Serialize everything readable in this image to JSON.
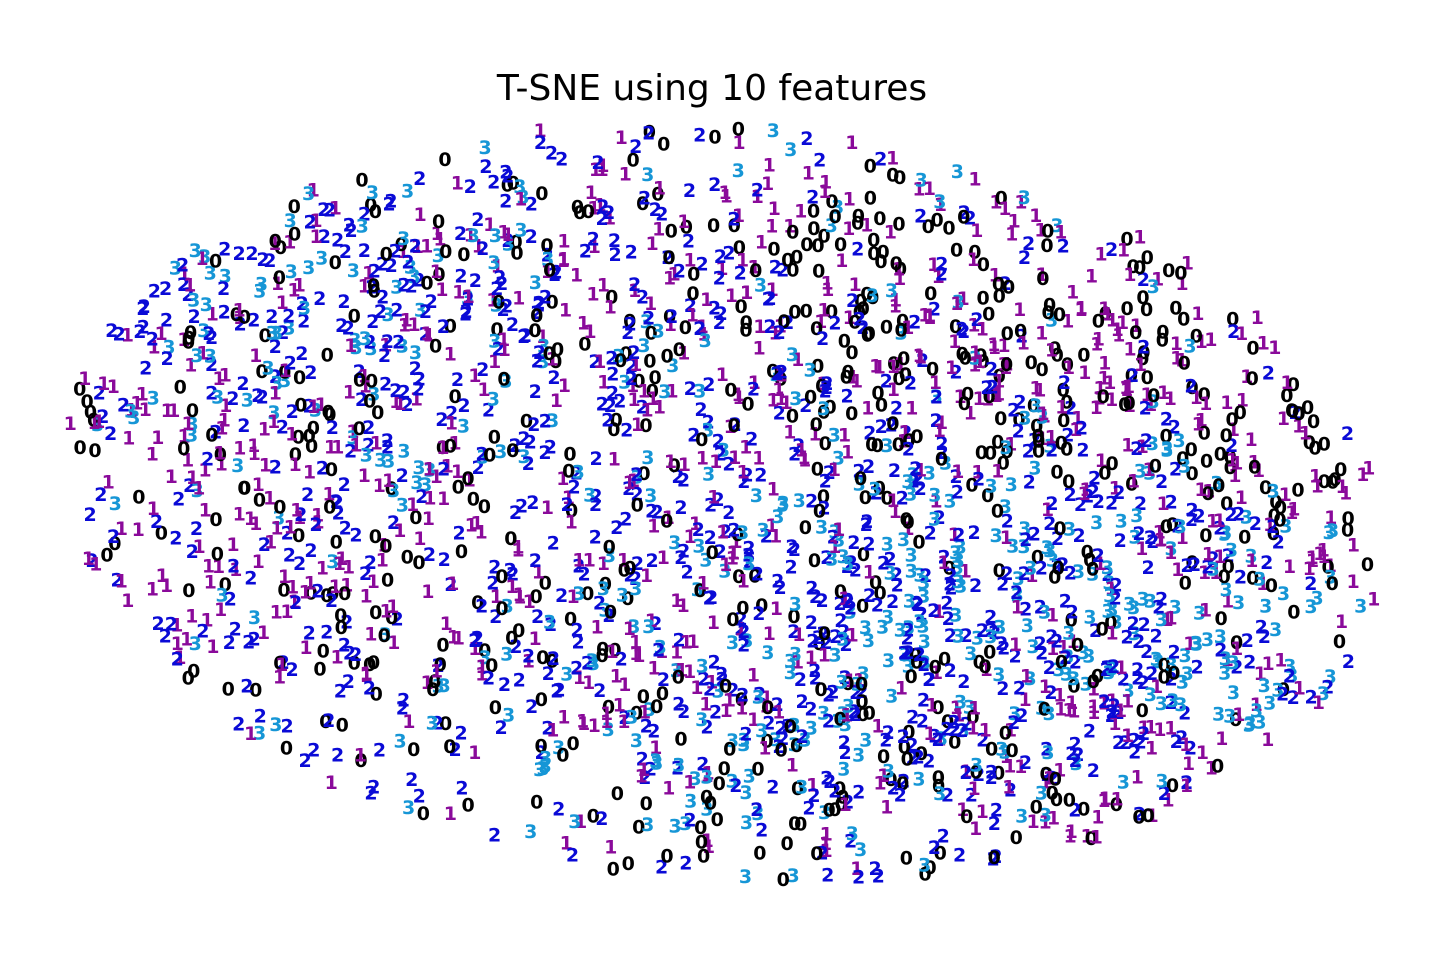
{
  "chart_data": {
    "type": "scatter",
    "title": "T-SNE using 10 features",
    "xlabel": "",
    "ylabel": "",
    "axes_visible": false,
    "grid": false,
    "legend": "none",
    "marker": "digit-labels",
    "xlim": [
      -60,
      60
    ],
    "ylim": [
      -42,
      42
    ],
    "class_labels": [
      "0",
      "1",
      "2",
      "3"
    ],
    "colors": {
      "0": "#000000",
      "1": "#8a0a9a",
      "2": "#0a0ad6",
      "3": "#1696d6"
    },
    "seed": 20240611,
    "n_points": 2600,
    "class_density_profiles": {
      "0": [
        [
          -20,
          28,
          3
        ],
        [
          10,
          24,
          6
        ],
        [
          30,
          16,
          9
        ],
        [
          44,
          4,
          8
        ],
        [
          -40,
          6,
          3
        ],
        [
          -30,
          -10,
          3
        ],
        [
          -10,
          -14,
          2
        ],
        [
          0,
          -28,
          3
        ],
        [
          28,
          -26,
          6
        ],
        [
          15,
          5,
          2
        ],
        [
          -5,
          12,
          2
        ]
      ],
      "1": [
        [
          30,
          18,
          9
        ],
        [
          48,
          2,
          9
        ],
        [
          -50,
          2,
          6
        ],
        [
          -40,
          12,
          5
        ],
        [
          -20,
          24,
          5
        ],
        [
          10,
          12,
          4
        ],
        [
          -10,
          -2,
          4
        ],
        [
          -30,
          -12,
          4
        ],
        [
          -5,
          -16,
          4
        ],
        [
          18,
          -22,
          5
        ],
        [
          35,
          -26,
          4
        ],
        [
          8,
          24,
          4
        ]
      ],
      "2": [
        [
          -40,
          20,
          9
        ],
        [
          -20,
          26,
          5
        ],
        [
          -45,
          -8,
          4
        ],
        [
          -30,
          -14,
          4
        ],
        [
          10,
          8,
          6
        ],
        [
          25,
          -8,
          8
        ],
        [
          40,
          -12,
          6
        ],
        [
          10,
          -24,
          7
        ],
        [
          -10,
          12,
          4
        ],
        [
          0,
          -10,
          5
        ],
        [
          25,
          -28,
          4
        ],
        [
          -15,
          0,
          4
        ]
      ],
      "3": [
        [
          -30,
          28,
          4
        ],
        [
          -40,
          12,
          3
        ],
        [
          -15,
          12,
          3
        ],
        [
          25,
          -5,
          8
        ],
        [
          42,
          -12,
          6
        ],
        [
          10,
          -20,
          5
        ],
        [
          -5,
          -25,
          4
        ],
        [
          45,
          -18,
          3
        ],
        [
          5,
          -5,
          2
        ]
      ]
    },
    "ellipse_envelope": {
      "center": [
        0,
        0
      ],
      "rx": 58,
      "ry": 40,
      "tilt_deg": -8
    }
  }
}
